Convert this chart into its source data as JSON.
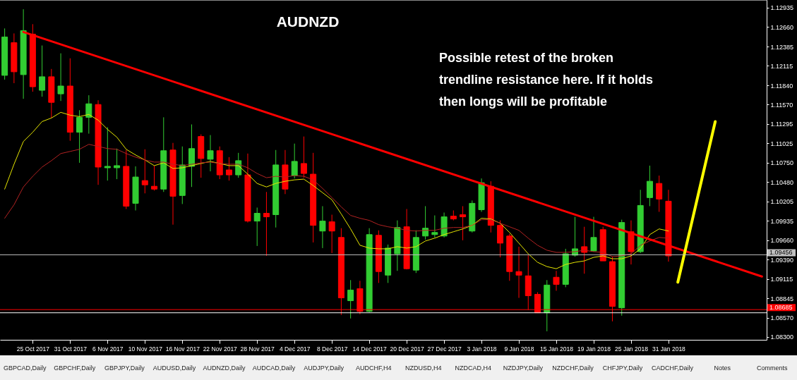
{
  "chart_data": {
    "type": "candlestick",
    "title": "AUDNZD",
    "annotations": [
      "Possible retest of the broken\ntrendline resistance here. If it holds\nthen longs will be profitable",
      "GBPCAD,Daily",
      "GBPCHF,Daily",
      "GBPJPY,Daily",
      "AUDUSD,Daily",
      "AUDNZD,Daily",
      "AUDCAD,Daily",
      "AUDJPY,Daily",
      "AUDCHF,H4",
      "NZDUSD,H4",
      "NZDCAD,H4",
      "NZDJPY,Daily",
      "NZDCHF,Daily",
      "CHFJPY,Daily",
      "CADCHF,Daily",
      "Notes",
      "Comments"
    ],
    "categories": [
      null,
      null,
      null,
      "25 Oct 2017",
      null,
      null,
      null,
      "31 Oct 2017",
      null,
      null,
      null,
      "6 Nov 2017",
      null,
      null,
      null,
      "10 Nov 2017",
      null,
      null,
      null,
      "16 Nov 2017",
      null,
      null,
      null,
      "22 Nov 2017",
      null,
      null,
      null,
      "28 Nov 2017",
      null,
      null,
      null,
      "4 Dec 2017",
      null,
      null,
      null,
      "8 Dec 2017",
      null,
      null,
      null,
      "14 Dec 2017",
      null,
      null,
      null,
      "20 Dec 2017",
      null,
      null,
      null,
      "27 Dec 2017",
      null,
      null,
      null,
      "3 Jan 2018",
      null,
      null,
      null,
      "9 Jan 2018",
      null,
      null,
      null,
      "15 Jan 2018",
      null,
      null,
      null,
      "19 Jan 2018",
      null,
      null,
      null,
      "25 Jan 2018",
      null,
      null,
      null,
      "31 Jan 2018",
      null,
      null,
      null,
      null,
      null,
      null,
      null,
      null,
      null,
      null
    ],
    "ohlc": [
      [
        1.1198,
        1.1264,
        1.1192,
        1.1252
      ],
      [
        1.1244,
        1.1257,
        1.1187,
        1.1203
      ],
      [
        1.1199,
        1.1291,
        1.1165,
        1.1261
      ],
      [
        1.1256,
        1.127,
        1.1175,
        1.1182
      ],
      [
        1.1177,
        1.124,
        1.1168,
        1.1196
      ],
      [
        1.1196,
        1.1207,
        1.1138,
        1.116
      ],
      [
        1.1172,
        1.1229,
        1.1162,
        1.1183
      ],
      [
        1.1183,
        1.1222,
        1.1106,
        1.1118
      ],
      [
        1.1118,
        1.1149,
        1.1075,
        1.1139
      ],
      [
        1.1139,
        1.117,
        1.1116,
        1.1158
      ],
      [
        1.1157,
        1.1163,
        1.1044,
        1.1069
      ],
      [
        1.1068,
        1.1125,
        1.105,
        1.107
      ],
      [
        1.1068,
        1.1095,
        1.1052,
        1.1071
      ],
      [
        1.107,
        1.1093,
        1.101,
        1.1014
      ],
      [
        1.1018,
        1.107,
        1.1008,
        1.1055
      ],
      [
        1.105,
        1.1094,
        1.1032,
        1.1044
      ],
      [
        1.1042,
        1.1071,
        1.1036,
        1.1038
      ],
      [
        1.1038,
        1.1139,
        1.1034,
        1.1092
      ],
      [
        1.1093,
        1.1103,
        1.0988,
        1.1028
      ],
      [
        1.1029,
        1.1098,
        1.1017,
        1.1072
      ],
      [
        1.107,
        1.1129,
        1.1041,
        1.1095
      ],
      [
        1.1112,
        1.1115,
        1.1054,
        1.1081
      ],
      [
        1.108,
        1.1114,
        1.1063,
        1.1092
      ],
      [
        1.1092,
        1.1098,
        1.1052,
        1.1058
      ],
      [
        1.1065,
        1.1083,
        1.105,
        1.1058
      ],
      [
        1.1058,
        1.1089,
        1.1054,
        1.1078
      ],
      [
        1.1058,
        1.1088,
        1.0991,
        1.0993
      ],
      [
        1.0993,
        1.1012,
        1.0958,
        1.1004
      ],
      [
        1.1004,
        1.1034,
        1.0944,
        1.0999
      ],
      [
        1.1002,
        1.1093,
        1.0984,
        1.1072
      ],
      [
        1.1072,
        1.1093,
        1.1031,
        1.1038
      ],
      [
        1.1057,
        1.1102,
        1.1053,
        1.1077
      ],
      [
        1.1074,
        1.1112,
        1.1054,
        1.106
      ],
      [
        1.1059,
        1.1089,
        1.0963,
        1.0987
      ],
      [
        1.0979,
        1.1014,
        1.0955,
        1.0993
      ],
      [
        1.0992,
        1.1002,
        1.0948,
        1.0979
      ],
      [
        1.097,
        1.0983,
        1.0861,
        1.0885
      ],
      [
        1.0881,
        1.091,
        1.0856,
        1.0896
      ],
      [
        1.0898,
        1.0909,
        1.0862,
        1.0866
      ],
      [
        1.0866,
        1.0983,
        1.0865,
        1.0974
      ],
      [
        1.0973,
        1.098,
        1.0906,
        1.0922
      ],
      [
        1.0917,
        1.096,
        1.0906,
        1.0955
      ],
      [
        1.0947,
        1.0994,
        1.0923,
        1.0984
      ],
      [
        1.0985,
        1.101,
        1.0925,
        1.0926
      ],
      [
        1.0924,
        1.098,
        1.092,
        1.097
      ],
      [
        1.0972,
        1.1014,
        1.0967,
        1.0983
      ],
      [
        1.0974,
        1.1001,
        1.097,
        1.0977
      ],
      [
        1.0972,
        1.1005,
        1.097,
        1.0999
      ],
      [
        1.1,
        1.1008,
        1.0994,
        1.0996
      ],
      [
        1.1002,
        1.1014,
        1.0966,
        1.0999
      ],
      [
        1.0979,
        1.1022,
        1.0977,
        1.1018
      ],
      [
        1.1009,
        1.1053,
        1.1006,
        1.1047
      ],
      [
        1.1042,
        1.1049,
        1.0977,
        1.0987
      ],
      [
        1.0987,
        1.0994,
        1.0942,
        1.0962
      ],
      [
        1.0972,
        1.0975,
        1.0909,
        1.0922
      ],
      [
        1.0922,
        1.0957,
        1.0885,
        1.0917
      ],
      [
        1.0916,
        1.0945,
        1.0868,
        1.0888
      ],
      [
        1.089,
        1.0893,
        1.0864,
        1.0864
      ],
      [
        1.0864,
        1.091,
        1.0838,
        1.0903
      ],
      [
        1.0914,
        1.0923,
        1.0895,
        1.0904
      ],
      [
        1.0904,
        1.0954,
        1.09,
        1.0947
      ],
      [
        1.0945,
        1.0999,
        1.0943,
        1.0954
      ],
      [
        1.0957,
        1.0985,
        1.0919,
        1.0949
      ],
      [
        1.0951,
        1.0999,
        1.095,
        1.097
      ],
      [
        1.0981,
        1.0985,
        1.0937,
        1.0937
      ],
      [
        1.0936,
        1.0943,
        1.0852,
        1.0873
      ],
      [
        1.0871,
        1.0995,
        1.086,
        1.0991
      ],
      [
        1.0978,
        1.0994,
        1.0932,
        1.095
      ],
      [
        1.095,
        1.1037,
        1.0948,
        1.1015
      ],
      [
        1.1026,
        1.1071,
        1.1014,
        1.1049
      ],
      [
        1.1046,
        1.1057,
        1.1006,
        1.1024
      ],
      [
        1.1021,
        1.1037,
        1.0936,
        1.0944
      ],
      null,
      null,
      null,
      null,
      null,
      null,
      null,
      null,
      null,
      null
    ],
    "colors": [
      "#32cd32",
      "#ff0000",
      "#32cd32",
      "#ff0000",
      "#32cd32",
      "#ff0000",
      "#32cd32",
      "#ff0000",
      "#32cd32",
      "#32cd32",
      "#ff0000",
      "#32cd32",
      "#32cd32",
      "#ff0000",
      "#32cd32",
      "#ff0000",
      "#ff0000",
      "#32cd32",
      "#ff0000",
      "#32cd32",
      "#32cd32",
      "#ff0000",
      "#32cd32",
      "#ff0000",
      "#ff0000",
      "#32cd32",
      "#ff0000",
      "#32cd32",
      "#ff0000",
      "#32cd32",
      "#ff0000",
      "#32cd32",
      "#ff0000",
      "#ff0000",
      "#32cd32",
      "#ff0000",
      "#ff0000",
      "#32cd32",
      "#ff0000",
      "#32cd32",
      "#ff0000",
      "#32cd32",
      "#32cd32",
      "#ff0000",
      "#32cd32",
      "#32cd32",
      "#32cd32",
      "#32cd32",
      "#ff0000",
      "#ff0000",
      "#32cd32",
      "#32cd32",
      "#ff0000",
      "#ff0000",
      "#ff0000",
      "#ff0000",
      "#ff0000",
      "#ff0000",
      "#32cd32",
      "#ff0000",
      "#32cd32",
      "#32cd32",
      "#ff0000",
      "#32cd32",
      "#ff0000",
      "#ff0000",
      "#32cd32",
      "#ff0000",
      "#32cd32",
      "#32cd32",
      "#ff0000",
      "#ff0000",
      null,
      null,
      null,
      null,
      null,
      null,
      null,
      null,
      null,
      null
    ],
    "series": [
      {
        "type": "line",
        "color": "#e6e600",
        "values": [
          1.1038,
          1.1073,
          1.1105,
          1.1118,
          1.1133,
          1.1138,
          1.1146,
          1.1142,
          1.114,
          1.1143,
          1.1135,
          1.1122,
          1.1111,
          1.1094,
          1.1086,
          1.1079,
          1.1071,
          1.1075,
          1.1067,
          1.1068,
          1.1071,
          1.1074,
          1.1077,
          1.1074,
          1.1071,
          1.1071,
          1.1059,
          1.1046,
          1.1041,
          1.1046,
          1.1049,
          1.1051,
          1.1052,
          1.1043,
          1.1033,
          1.1023,
          1.1003,
          1.0982,
          1.0959,
          1.0955,
          1.0954,
          1.0954,
          1.0957,
          1.0955,
          1.0957,
          1.0965,
          1.0969,
          1.0974,
          1.0978,
          1.0982,
          1.0987,
          1.0997,
          1.0996,
          1.099,
          1.0977,
          1.0962,
          1.0947,
          1.0935,
          1.0929,
          1.0926,
          1.0932,
          1.0935,
          1.0937,
          1.0942,
          1.0944,
          1.094,
          1.094,
          1.0944,
          1.0954,
          1.0974,
          1.0982,
          1.0979,
          null,
          null,
          null,
          null,
          null,
          null,
          null,
          null,
          null,
          null
        ]
      },
      {
        "type": "line",
        "color": "#b22222",
        "values": [
          1.0997,
          1.1016,
          1.1041,
          1.1056,
          1.1069,
          1.1078,
          1.1088,
          1.1091,
          1.1094,
          1.1101,
          1.1098,
          1.1095,
          1.1094,
          1.1088,
          1.1083,
          1.1079,
          1.1076,
          1.1076,
          1.1073,
          1.1071,
          1.1073,
          1.1075,
          1.1076,
          1.1074,
          1.1073,
          1.1073,
          1.1068,
          1.106,
          1.1054,
          1.1056,
          1.1055,
          1.1057,
          1.1056,
          1.1051,
          1.1039,
          1.1026,
          1.1013,
          1.1001,
          1.0997,
          1.0994,
          1.0988,
          1.0985,
          1.0983,
          1.098,
          1.0979,
          1.098,
          1.098,
          1.0983,
          1.0984,
          1.0984,
          1.0987,
          1.0995,
          1.0995,
          1.099,
          1.0985,
          1.098,
          1.0969,
          1.0959,
          1.0952,
          1.0949,
          1.0949,
          1.095,
          1.0952,
          1.095,
          1.0949,
          1.0943,
          1.0944,
          1.0947,
          1.0959,
          1.0965,
          1.097,
          1.0969,
          null,
          null,
          null,
          null,
          null,
          null,
          null,
          null,
          null,
          null
        ]
      },
      {
        "type": "line",
        "color": "#ff0000",
        "values": [
          null,
          null,
          1.1259,
          null,
          null,
          null,
          null,
          null,
          null,
          null,
          null,
          null,
          null,
          null,
          null,
          null,
          null,
          null,
          null,
          null,
          null,
          null,
          null,
          null,
          null,
          null,
          null,
          null,
          null,
          null,
          null,
          null,
          null,
          null,
          null,
          null,
          null,
          null,
          null,
          null,
          null,
          null,
          null,
          null,
          null,
          null,
          null,
          null,
          null,
          null,
          null,
          null,
          null,
          null,
          null,
          null,
          null,
          null,
          null,
          null,
          null,
          null,
          null,
          null,
          null,
          null,
          null,
          null,
          null,
          null,
          null,
          null,
          null,
          null,
          null,
          null,
          null,
          null,
          null,
          null,
          null,
          1.0915
        ]
      },
      {
        "type": "line",
        "color": "#ffff00",
        "values": [
          null,
          null,
          null,
          null,
          null,
          null,
          null,
          null,
          null,
          null,
          null,
          null,
          null,
          null,
          null,
          null,
          null,
          null,
          null,
          null,
          null,
          null,
          null,
          null,
          null,
          null,
          null,
          null,
          null,
          null,
          null,
          null,
          null,
          null,
          null,
          null,
          null,
          null,
          null,
          null,
          null,
          null,
          null,
          null,
          null,
          null,
          null,
          null,
          null,
          null,
          null,
          null,
          null,
          null,
          null,
          null,
          null,
          null,
          null,
          null,
          null,
          null,
          null,
          null,
          null,
          null,
          null,
          null,
          null,
          null,
          null,
          null,
          1.0907,
          null,
          null,
          null,
          1.1133,
          null,
          null,
          null,
          null,
          null
        ]
      }
    ],
    "ref_lines": [
      {
        "axis": "y",
        "value": 1.09456,
        "label": "1.09456",
        "color": "#c0c0c0"
      },
      {
        "axis": "y",
        "value": 1.08685,
        "label": "1.08685",
        "color": "#ff0000"
      },
      {
        "axis": "y",
        "value": 1.0864,
        "label": null,
        "color": "#ffffff"
      }
    ],
    "ylim": [
      1.0826,
      1.1304
    ],
    "yticks": [
      1.12935,
      {
        "value": 1.1266,
        "label": "1.12660"
      },
      1.12385,
      1.12115,
      {
        "value": 1.1184,
        "label": "1.11840"
      },
      {
        "value": 1.1157,
        "label": "1.11570"
      },
      1.11295,
      1.11025,
      {
        "value": 1.1075,
        "label": "1.10750"
      },
      {
        "value": 1.1048,
        "label": "1.10480"
      },
      1.10205,
      1.09935,
      {
        "value": 1.0966,
        "label": "1.09660"
      },
      {
        "value": 1.0939,
        "label": "1.09390"
      },
      1.09115,
      1.08845,
      {
        "value": 1.0857,
        "label": "1.08570"
      },
      {
        "value": 1.083,
        "label": "1.08300"
      }
    ]
  }
}
